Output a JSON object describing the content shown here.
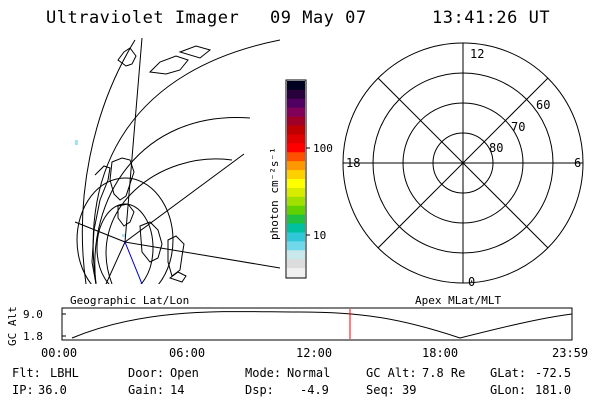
{
  "header": {
    "title": "Ultraviolet Imager",
    "date": "09 May 07",
    "time": "13:41:26 UT"
  },
  "colorbar": {
    "unit_label": "photon cm⁻²s⁻¹",
    "ticks": [
      "100",
      "10"
    ],
    "colors": [
      "#f0f0f0",
      "#dcdcdc",
      "#c8e8ec",
      "#70d8e8",
      "#30c8d8",
      "#00c0a0",
      "#20c040",
      "#60d000",
      "#a0e000",
      "#d8ec00",
      "#ffff00",
      "#ffd000",
      "#ff9800",
      "#ff5000",
      "#ff0000",
      "#e00000",
      "#c00000",
      "#a00028",
      "#80005a",
      "#500060",
      "#28003c",
      "#000020"
    ]
  },
  "left_map": {
    "label": "Geographic Lat/Lon"
  },
  "right_map": {
    "label": "Apex MLat/MLT",
    "mlt_labels": {
      "top": "12",
      "left": "18",
      "right": "6",
      "bottom": "0"
    },
    "lat_labels": [
      "60",
      "70",
      "80"
    ]
  },
  "timeline": {
    "y_label": "GC Alt",
    "y_ticks": [
      "9.0",
      "1.8"
    ],
    "x_ticks": [
      "00:00",
      "06:00",
      "12:00",
      "18:00",
      "23:59"
    ],
    "marker_color": "#ff0000"
  },
  "status": {
    "row1": [
      {
        "key": "Flt:",
        "val": "LBHL"
      },
      {
        "key": "Door:",
        "val": "Open"
      },
      {
        "key": "Mode:",
        "val": "Normal"
      },
      {
        "key": "GC Alt:",
        "val": "7.8 Re"
      },
      {
        "key": "GLat:",
        "val": "-72.5"
      }
    ],
    "row2": [
      {
        "key": "IP:",
        "val": "36.0"
      },
      {
        "key": "Gain:",
        "val": "14"
      },
      {
        "key": "Dsp:",
        "val": "-4.9"
      },
      {
        "key": "Seq:",
        "val": "39"
      },
      {
        "key": "GLon:",
        "val": "181.0"
      }
    ]
  }
}
